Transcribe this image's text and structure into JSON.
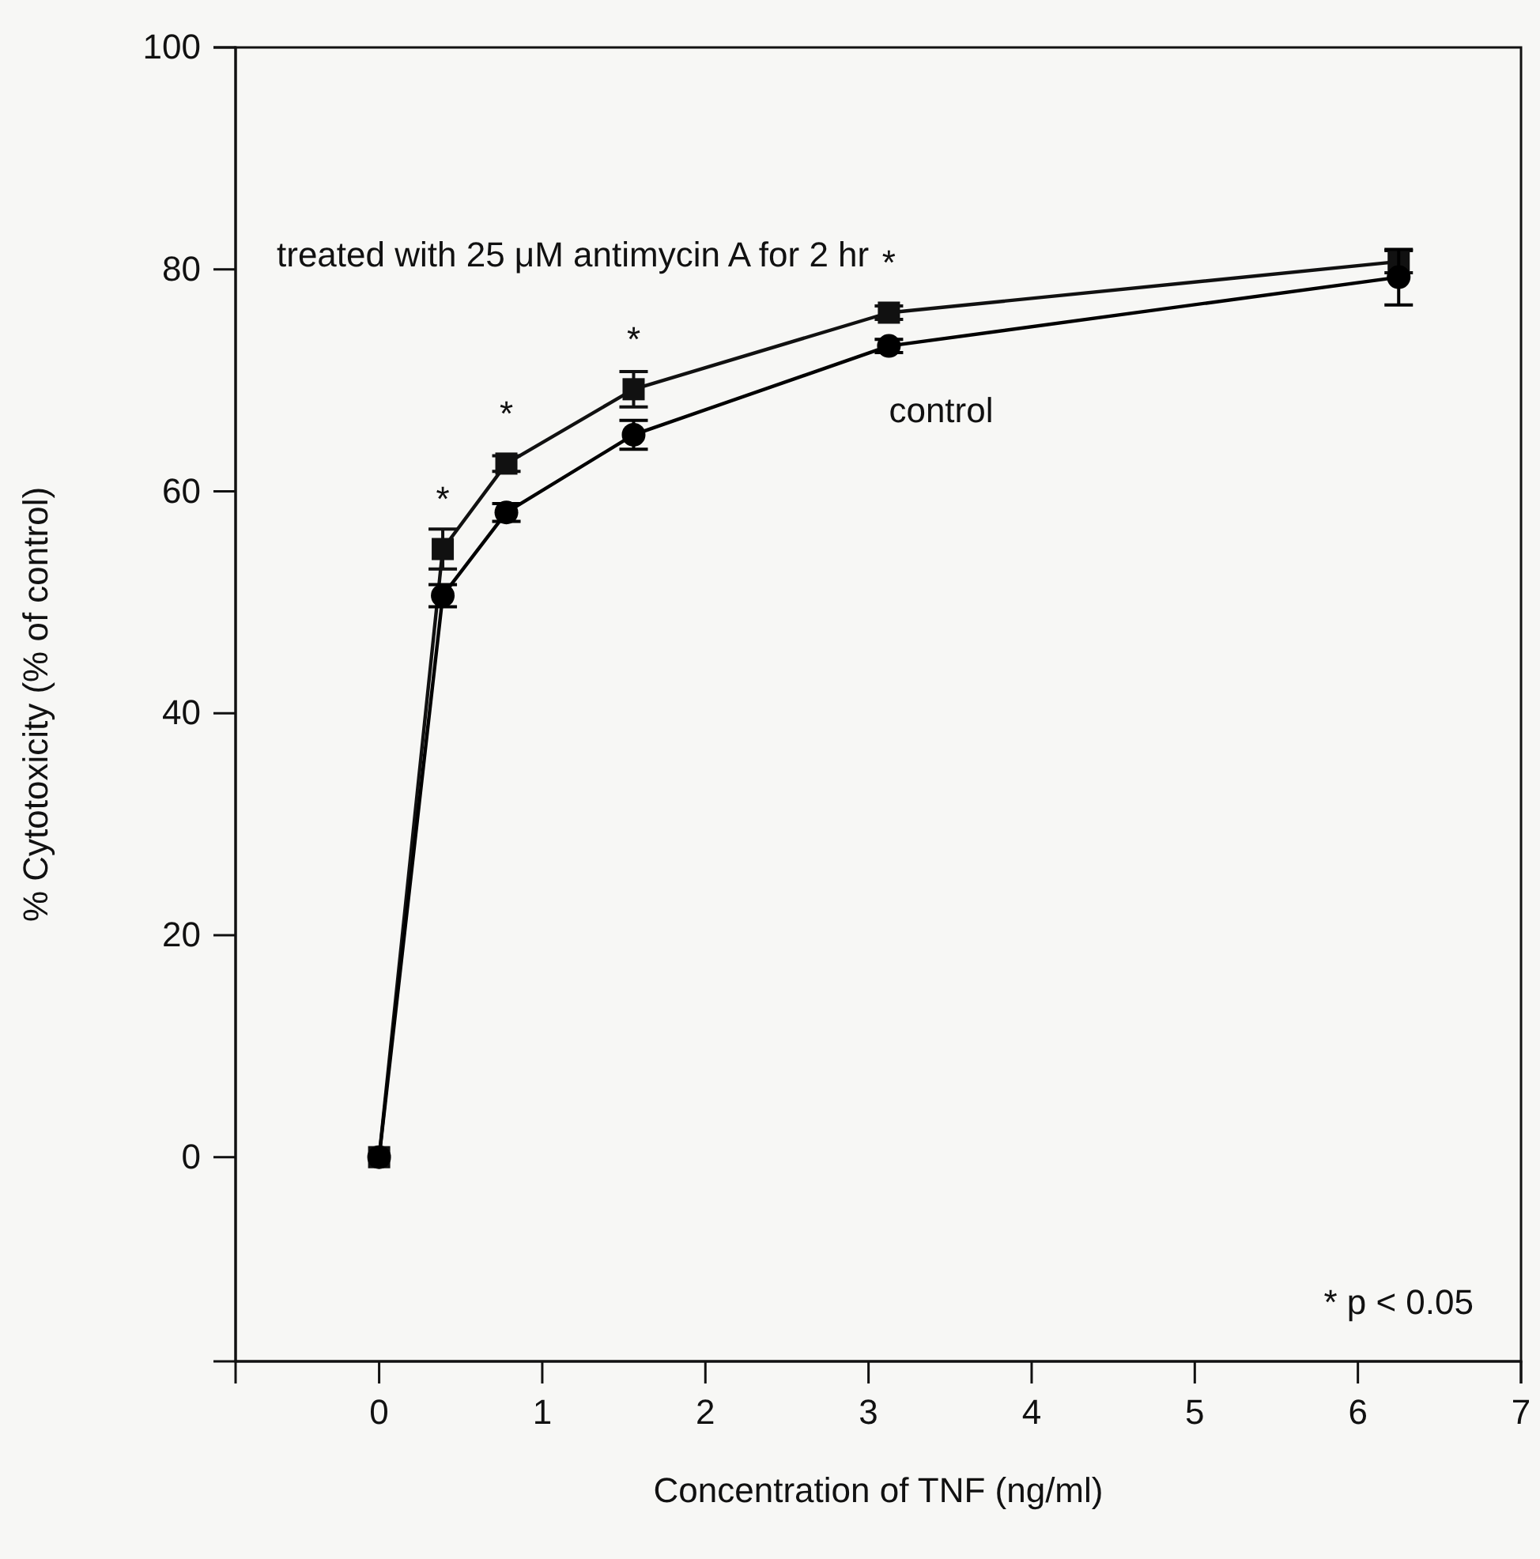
{
  "chart_data": {
    "type": "line",
    "xlabel": "Concentration of TNF (ng/ml)",
    "ylabel": "% Cytotoxicity (% of control)",
    "xlim": [
      -0.88,
      7
    ],
    "xticks": [
      0,
      1,
      2,
      3,
      4,
      5,
      6,
      7
    ],
    "ylim": [
      -18.4,
      100
    ],
    "yticks": [
      0,
      20,
      40,
      60,
      80,
      100
    ],
    "grid": false,
    "legend": false,
    "line_style": "solid",
    "series": [
      {
        "name": "treated with 25 μM antimycin A for 2 hr",
        "color": "#111111",
        "marker": "square",
        "x": [
          0,
          0.39,
          0.78,
          1.56,
          3.125,
          6.25
        ],
        "values": [
          0,
          54.8,
          62.5,
          69.2,
          76.1,
          80.7
        ],
        "errors": [
          null,
          1.8,
          0.7,
          1.6,
          0.6,
          1
        ]
      },
      {
        "name": "control",
        "color": "#000000",
        "marker": "circle",
        "x": [
          0,
          0.39,
          0.78,
          1.56,
          3.125,
          6.25
        ],
        "values": [
          0,
          50.6,
          58.1,
          65.1,
          73.1,
          79.3
        ],
        "errors": [
          null,
          1,
          0.8,
          1.3,
          0.6,
          2.5
        ]
      }
    ],
    "annotations": [
      {
        "text": "*",
        "x": 0.39,
        "y": 54.8
      },
      {
        "text": "*",
        "x": 0.78,
        "y": 62.5
      },
      {
        "text": "*",
        "x": 1.56,
        "y": 69.2
      },
      {
        "text": "*",
        "x": 3.125,
        "y": 76.1
      },
      "* p < 0.05"
    ]
  }
}
